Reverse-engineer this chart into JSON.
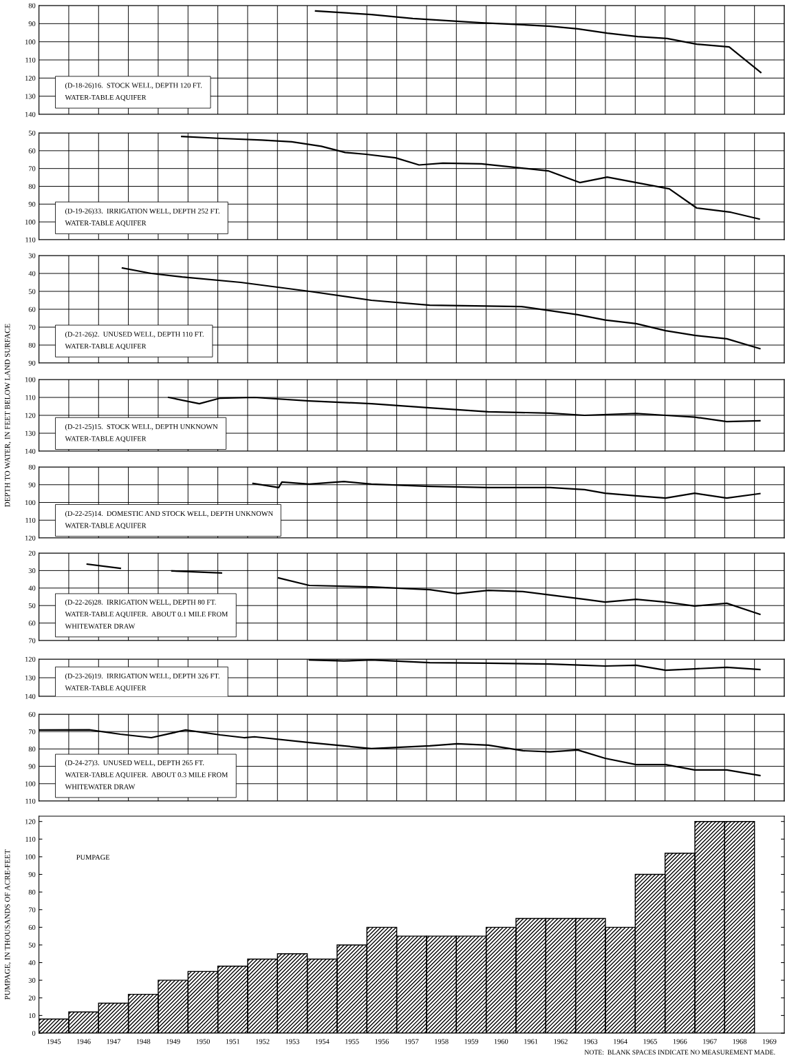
{
  "chart_data": [
    {
      "type": "line",
      "x": [
        1953.78,
        1955.65,
        1957.04,
        1959.35,
        1961.65,
        1962.57,
        1963.56,
        1964.58,
        1965.57,
        1966.56,
        1967.65,
        1968.71
      ],
      "series": [
        {
          "color": "#000000",
          "values": [
            83,
            85,
            87.2,
            89.5,
            91.4,
            92.9,
            95.2,
            97.1,
            98.2,
            101.3,
            102.8,
            116.9
          ]
        }
      ],
      "xlim": [
        1944.5,
        1969.5
      ],
      "xticks": [
        1945,
        1946,
        1947,
        1948,
        1949,
        1950,
        1951,
        1952,
        1953,
        1954,
        1955,
        1956,
        1957,
        1958,
        1959,
        1960,
        1961,
        1962,
        1963,
        1964,
        1965,
        1966,
        1967,
        1968,
        1969
      ],
      "ylim": [
        140,
        80
      ],
      "yticks": [
        80,
        90,
        100,
        110,
        120,
        130,
        140
      ],
      "grid": true,
      "tick_labels": "y",
      "marker": "none",
      "line_style": "solid",
      "annotations": [
        "(D-18-26)16.  STOCK WELL, DEPTH 120 FT.",
        "WATER-TABLE AQUIFER"
      ]
    },
    {
      "type": "line",
      "x": [
        1949.29,
        1950.49,
        1951.98,
        1952.98,
        1953.97,
        1954.77,
        1955.47,
        1956.46,
        1957.25,
        1958.05,
        1959.34,
        1961.58,
        1962.64,
        1963.56,
        1965.64,
        1966.56,
        1967.71,
        1968.66
      ],
      "series": [
        {
          "color": "#000000",
          "values": [
            52,
            53,
            54,
            55,
            57.5,
            61,
            62,
            64,
            68,
            67,
            67.4,
            71.3,
            77.9,
            74.8,
            81.4,
            92.2,
            94.6,
            98.4
          ]
        }
      ],
      "xlim": [
        1944.5,
        1969.5
      ],
      "xticks": [
        1945,
        1946,
        1947,
        1948,
        1949,
        1950,
        1951,
        1952,
        1953,
        1954,
        1955,
        1956,
        1957,
        1958,
        1959,
        1960,
        1961,
        1962,
        1963,
        1964,
        1965,
        1966,
        1967,
        1968,
        1969
      ],
      "ylim": [
        110,
        50
      ],
      "yticks": [
        50,
        60,
        70,
        80,
        90,
        100,
        110
      ],
      "grid": true,
      "tick_labels": "y",
      "marker": "none",
      "line_style": "solid",
      "annotations": [
        "(D-19-26)33.  IRRIGATION WELL, DEPTH 252 FT.",
        "WATER-TABLE AQUIFER"
      ]
    },
    {
      "type": "line",
      "x": [
        1947.3,
        1948.27,
        1949.31,
        1951.27,
        1953.57,
        1955.65,
        1957.61,
        1960.68,
        1962.57,
        1963.49,
        1964.53,
        1965.52,
        1966.49,
        1967.57,
        1968.68
      ],
      "series": [
        {
          "color": "#000000",
          "values": [
            37,
            40,
            42,
            45,
            50,
            55,
            57.7,
            58.5,
            63,
            66,
            68,
            72,
            74.6,
            76.5,
            82
          ]
        }
      ],
      "xlim": [
        1944.5,
        1969.5
      ],
      "xticks": [
        1945,
        1946,
        1947,
        1948,
        1949,
        1950,
        1951,
        1952,
        1953,
        1954,
        1955,
        1956,
        1957,
        1958,
        1959,
        1960,
        1961,
        1962,
        1963,
        1964,
        1965,
        1966,
        1967,
        1968,
        1969
      ],
      "ylim": [
        90,
        30
      ],
      "yticks": [
        30,
        40,
        50,
        60,
        70,
        80,
        90
      ],
      "grid": true,
      "tick_labels": "y",
      "marker": "none",
      "line_style": "solid",
      "annotations": [
        "(D-21-26)2.  UNUSED WELL, DEPTH 110 FT.",
        "WATER-TABLE AQUIFER"
      ]
    },
    {
      "type": "line",
      "x": [
        1948.85,
        1949.88,
        1950.58,
        1951.73,
        1953.57,
        1955.65,
        1957.61,
        1959.57,
        1961.65,
        1962.8,
        1964.53,
        1965.52,
        1966.49,
        1967.57,
        1968.68
      ],
      "series": [
        {
          "color": "#000000",
          "values": [
            110,
            113.5,
            110.4,
            110,
            112,
            113.5,
            115.8,
            118,
            118.8,
            120,
            119,
            120,
            121,
            123.5,
            123
          ]
        }
      ],
      "xlim": [
        1944.5,
        1969.5
      ],
      "xticks": [
        1945,
        1946,
        1947,
        1948,
        1949,
        1950,
        1951,
        1952,
        1953,
        1954,
        1955,
        1956,
        1957,
        1958,
        1959,
        1960,
        1961,
        1962,
        1963,
        1964,
        1965,
        1966,
        1967,
        1968,
        1969
      ],
      "ylim": [
        140,
        100
      ],
      "yticks": [
        100,
        110,
        120,
        130,
        140
      ],
      "grid": true,
      "tick_labels": "y",
      "marker": "none",
      "line_style": "solid",
      "ylabel": "DEPTH TO WATER, IN FEET BELOW LAND SURFACE",
      "annotations": [
        "(D-21-25)15.  STOCK WELL, DEPTH UNKNOWN",
        "WATER-TABLE AQUIFER"
      ]
    },
    {
      "type": "line",
      "x": [
        1951.68,
        1952.54,
        1952.65,
        1953.57,
        1954.73,
        1955.65,
        1957.61,
        1959.57,
        1961.65,
        1962.8,
        1963.49,
        1964.53,
        1965.52,
        1966.49,
        1967.57,
        1968.68
      ],
      "series": [
        {
          "color": "#000000",
          "values": [
            89.3,
            91.6,
            88.5,
            89.7,
            88.2,
            89.7,
            90.9,
            91.6,
            91.6,
            92.8,
            94.8,
            96.3,
            97.5,
            94.8,
            97.5,
            95
          ]
        }
      ],
      "xlim": [
        1944.5,
        1969.5
      ],
      "xticks": [
        1945,
        1946,
        1947,
        1948,
        1949,
        1950,
        1951,
        1952,
        1953,
        1954,
        1955,
        1956,
        1957,
        1958,
        1959,
        1960,
        1961,
        1962,
        1963,
        1964,
        1965,
        1966,
        1967,
        1968,
        1969
      ],
      "ylim": [
        120,
        80
      ],
      "yticks": [
        80,
        90,
        100,
        110,
        120
      ],
      "grid": true,
      "tick_labels": "y",
      "marker": "none",
      "line_style": "solid",
      "annotations": [
        "(D-22-25)14.  DOMESTIC AND STOCK WELL, DEPTH UNKNOWN",
        "WATER-TABLE AQUIFER"
      ]
    },
    {
      "type": "line",
      "x": [
        1946.12,
        1947.23,
        1948.0,
        1948.96,
        1950.62,
        1951.5,
        1952.54,
        1953.57,
        1955.65,
        1957.61,
        1958.53,
        1959.57,
        1960.73,
        1962.8,
        1963.49,
        1964.53,
        1965.52,
        1966.49,
        1967.57,
        1968.68
      ],
      "series": [
        {
          "color": "#000000",
          "values": [
            26.3,
            28.7,
            null,
            30.2,
            31.4,
            null,
            34.2,
            38.5,
            39.3,
            40.9,
            43.2,
            41.3,
            42,
            46.4,
            48,
            46.4,
            48,
            50.3,
            48.7,
            55
          ]
        }
      ],
      "xlim": [
        1944.5,
        1969.5
      ],
      "xticks": [
        1945,
        1946,
        1947,
        1948,
        1949,
        1950,
        1951,
        1952,
        1953,
        1954,
        1955,
        1956,
        1957,
        1958,
        1959,
        1960,
        1961,
        1962,
        1963,
        1964,
        1965,
        1966,
        1967,
        1968,
        1969
      ],
      "ylim": [
        70,
        20
      ],
      "yticks": [
        20,
        30,
        40,
        50,
        60,
        70
      ],
      "grid": true,
      "tick_labels": "y",
      "marker": "none",
      "line_style": "solid",
      "annotations": [
        "(D-22-26)28.  IRRIGATION WELL, DEPTH 80 FT.",
        "WATER-TABLE AQUIFER.  ABOUT 0.1 MILE FROM",
        "WHITEWATER DRAW"
      ]
    },
    {
      "type": "line",
      "x": [
        1953.57,
        1954.73,
        1955.65,
        1957.61,
        1959.57,
        1961.65,
        1962.8,
        1963.49,
        1964.53,
        1965.52,
        1966.49,
        1967.57,
        1968.68
      ],
      "series": [
        {
          "color": "#000000",
          "values": [
            120.4,
            121,
            120.4,
            121.9,
            122.2,
            122.6,
            123.3,
            123.7,
            123.3,
            126,
            125.2,
            124.4,
            125.6
          ]
        }
      ],
      "xlim": [
        1944.5,
        1969.5
      ],
      "xticks": [
        1945,
        1946,
        1947,
        1948,
        1949,
        1950,
        1951,
        1952,
        1953,
        1954,
        1955,
        1956,
        1957,
        1958,
        1959,
        1960,
        1961,
        1962,
        1963,
        1964,
        1965,
        1966,
        1967,
        1968,
        1969
      ],
      "ylim": [
        140,
        120
      ],
      "yticks": [
        120,
        130,
        140
      ],
      "grid": true,
      "tick_labels": "y",
      "marker": "none",
      "line_style": "solid",
      "annotations": [
        "(D-23-26)19.  IRRIGATION WELL, DEPTH 326 FT.",
        "WATER-TABLE AQUIFER"
      ]
    },
    {
      "type": "line",
      "x": [
        1944.51,
        1946.19,
        1947.23,
        1948.27,
        1949.42,
        1950.58,
        1951.38,
        1951.73,
        1953.57,
        1955.65,
        1957.61,
        1958.53,
        1959.57,
        1960.73,
        1961.65,
        1962.57,
        1963.49,
        1964.53,
        1965.52,
        1966.49,
        1967.57,
        1968.68
      ],
      "series": [
        {
          "color": "#000000",
          "values": [
            69.1,
            69,
            71.5,
            73.5,
            69.1,
            71.9,
            73.5,
            73,
            76.3,
            79.8,
            78.2,
            77,
            77.8,
            81,
            81.7,
            80.6,
            85.4,
            89,
            89,
            92.1,
            92.1,
            95.3
          ]
        }
      ],
      "xlim": [
        1944.5,
        1969.5
      ],
      "xticks": [
        1945,
        1946,
        1947,
        1948,
        1949,
        1950,
        1951,
        1952,
        1953,
        1954,
        1955,
        1956,
        1957,
        1958,
        1959,
        1960,
        1961,
        1962,
        1963,
        1964,
        1965,
        1966,
        1967,
        1968,
        1969
      ],
      "ylim": [
        110,
        60
      ],
      "yticks": [
        60,
        70,
        80,
        90,
        100,
        110
      ],
      "grid": true,
      "tick_labels": "y",
      "marker": "none",
      "line_style": "solid",
      "annotations": [
        "(D-24-27)3.  UNUSED WELL, DEPTH 265 FT.",
        "WATER-TABLE AQUIFER.  ABOUT 0.3 MILE FROM",
        "WHITEWATER DRAW"
      ]
    },
    {
      "type": "bar",
      "categories": [
        "1945",
        "1946",
        "1947",
        "1948",
        "1949",
        "1950",
        "1951",
        "1952",
        "1953",
        "1954",
        "1955",
        "1956",
        "1957",
        "1958",
        "1959",
        "1960",
        "1961",
        "1962",
        "1963",
        "1964",
        "1965",
        "1966",
        "1967",
        "1968",
        "1969"
      ],
      "series": [
        {
          "color": "#000000",
          "values": [
            8,
            12,
            17,
            22,
            30,
            35,
            38,
            42,
            45,
            42,
            50,
            60,
            55,
            55,
            55,
            60,
            65,
            65,
            65,
            60,
            90,
            102,
            120,
            120,
            null
          ]
        }
      ],
      "ylim": [
        0,
        123
      ],
      "yticks": [
        0,
        10,
        20,
        30,
        40,
        50,
        60,
        70,
        80,
        90,
        100,
        110,
        120
      ],
      "grid": false,
      "ylabel": "PUMPAGE, IN THOUSANDS OF ACRE-FEET",
      "annotations": [
        "PUMPAGE",
        "NOTE:  BLANK SPACES INDICATE NO MEASUREMENT MADE."
      ]
    }
  ]
}
